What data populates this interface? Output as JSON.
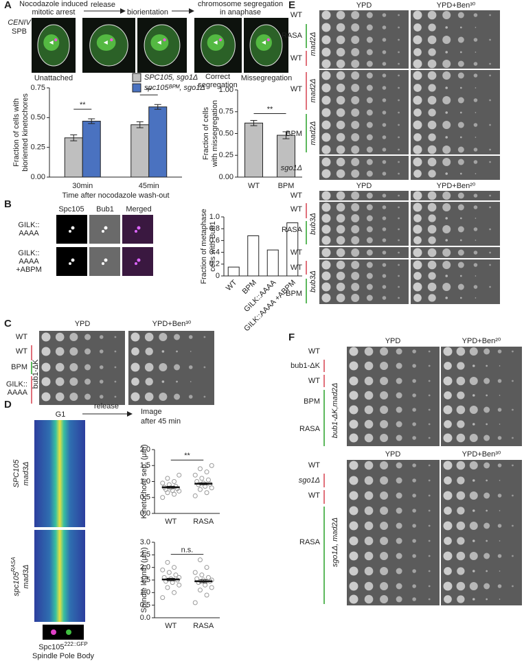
{
  "panels": {
    "A": {
      "label": "A",
      "steps": [
        [
          "Nocodazole induced",
          "mitotic arrest"
        ],
        "release",
        "biorientation",
        [
          "chromosome segregation",
          "in anaphase"
        ]
      ],
      "channels": [
        "CENIV",
        "SPB"
      ],
      "captions": [
        "Unattached",
        [
          "Correct",
          "segregation"
        ],
        "Missegregation"
      ]
    },
    "B": {
      "label": "B",
      "columns": [
        "Spc105",
        "Bub1",
        "Merged"
      ],
      "rows": [
        [
          "GILK::",
          "AAAA"
        ],
        [
          "GILK::",
          "AAAA",
          "+ABPM"
        ]
      ]
    },
    "C": {
      "label": "C",
      "media": [
        "YPD",
        "YPD+Ben³⁰"
      ],
      "rows": [
        "WT",
        "WT",
        "BPM",
        [
          "GILK::",
          "AAAA"
        ]
      ],
      "group": "bub1-ΔK"
    },
    "D": {
      "label": "D",
      "steps": [
        "G1",
        "release",
        [
          "Image",
          "after 45 min"
        ]
      ],
      "genotypes": [
        {
          "name": "SPC105",
          "rest": "mad3Δ"
        },
        {
          "name": "spc105",
          "sup": "RASA",
          "rest": "mad3Δ"
        }
      ],
      "reporter": {
        "name": "Spc105",
        "sup": "222::GFP"
      },
      "marker": "Spindle Pole Body"
    },
    "E": {
      "label": "E",
      "blocks": [
        {
          "media": [
            "YPD",
            "YPD+Ben³⁰"
          ],
          "rows": [
            "WT",
            "RASA",
            "WT",
            "WT",
            "BPM",
            "sgo1Δ"
          ],
          "groups": [
            "mad2Δ",
            "mad2Δ",
            "mad2Δ"
          ]
        },
        {
          "media": [
            "YPD",
            "YPD+Ben²⁰"
          ],
          "rows": [
            "WT",
            "WT",
            "RASA",
            "WT",
            "WT",
            "BPM"
          ],
          "groups": [
            "bub3Δ",
            "bub3Δ"
          ]
        }
      ]
    },
    "F": {
      "label": "F",
      "blocks": [
        {
          "media": [
            "YPD",
            "YPD+Ben²⁰"
          ],
          "rows": [
            "WT",
            "bub1-ΔK",
            "WT",
            "BPM",
            "RASA"
          ],
          "groups": [
            "bub1-ΔK,mad2Δ"
          ]
        },
        {
          "media": [
            "YPD",
            "YPD+Ben³⁰"
          ],
          "rows": [
            "WT",
            "sgo1Δ",
            "WT",
            "RASA"
          ],
          "groups": [
            "sgo1Δ, mad2Δ"
          ]
        }
      ]
    }
  },
  "chart_data": [
    {
      "type": "bar",
      "ylabel": [
        "Fraction of cells with",
        "bioriented kinetochores"
      ],
      "xlabel": "Time after nocodazole wash-out",
      "categories": [
        "30min",
        "45min"
      ],
      "series": [
        {
          "name": "SPC105, sgo1Δ",
          "color": "#bfbfbf",
          "values": [
            0.33,
            0.44
          ],
          "errors": [
            0.025,
            0.025
          ]
        },
        {
          "name": "spc105ᴮᴾᴹ, sgo1Δ",
          "color": "#4a72c0",
          "values": [
            0.47,
            0.59
          ],
          "errors": [
            0.02,
            0.02
          ]
        }
      ],
      "ylim": [
        0,
        0.75
      ],
      "yticks": [
        {
          "value": 0,
          "label": "0.00"
        },
        {
          "value": 0.25,
          "label": "0.25"
        },
        {
          "value": 0.5,
          "label": "0.50"
        },
        {
          "value": 0.75,
          "label": "0.75"
        }
      ],
      "annotations": [
        "**",
        "**"
      ]
    },
    {
      "type": "bar",
      "ylabel": [
        "Fraction of cells",
        "with missegregation"
      ],
      "categories": [
        "WT",
        "BPM"
      ],
      "series": [
        {
          "color": "#bfbfbf",
          "values": [
            0.62,
            0.48
          ],
          "errors": [
            0.03,
            0.04
          ]
        }
      ],
      "ylim": [
        0,
        1
      ],
      "yticks": [
        {
          "value": 0,
          "label": "0.00"
        },
        {
          "value": 0.25,
          "label": "0.25"
        },
        {
          "value": 0.5,
          "label": "0.50"
        },
        {
          "value": 0.75,
          "label": "0.75"
        },
        {
          "value": 1,
          "label": "1.00"
        }
      ],
      "annotations": [
        "**"
      ]
    },
    {
      "type": "bar",
      "ylabel": [
        "Fraction of metaphase",
        "cells with Bub1"
      ],
      "categories": [
        "WT",
        "BPM",
        "GILK::AAAA",
        "GILK::AAAA +ABPM"
      ],
      "series": [
        {
          "color": "#ffffff",
          "values": [
            0.15,
            0.68,
            0.44,
            0.9
          ]
        }
      ],
      "ylim": [
        0,
        1
      ],
      "yticks": [
        0,
        0.2,
        0.4,
        0.6,
        0.8,
        {
          "value": 1,
          "label": "1.0"
        }
      ]
    },
    {
      "type": "dot",
      "ylabel": "Kinetochore sep. (μm)",
      "categories": [
        "WT",
        "RASA"
      ],
      "means": [
        0.82,
        0.93
      ],
      "errors": [
        0.03,
        0.03
      ],
      "points": [
        [
          0.5,
          0.6,
          0.65,
          0.7,
          0.72,
          0.75,
          0.78,
          0.8,
          0.82,
          0.85,
          0.9,
          0.95,
          1.0,
          1.1,
          1.2
        ],
        [
          0.55,
          0.65,
          0.75,
          0.8,
          0.85,
          0.9,
          0.92,
          0.95,
          1.0,
          1.05,
          1.1,
          1.2,
          1.3,
          1.4,
          1.5
        ]
      ],
      "ylim": [
        0,
        2
      ],
      "yticks": [
        {
          "value": 0,
          "label": "0.0"
        },
        {
          "value": 0.5,
          "label": "0.5"
        },
        {
          "value": 1,
          "label": "1.0"
        },
        {
          "value": 1.5,
          "label": "1.5"
        },
        {
          "value": 2,
          "label": "2.0"
        }
      ],
      "annotations": [
        "**"
      ]
    },
    {
      "type": "dot",
      "ylabel": "Spindle legnth (μm)",
      "categories": [
        "WT",
        "RASA"
      ],
      "means": [
        1.52,
        1.45
      ],
      "errors": [
        0.05,
        0.06
      ],
      "points": [
        [
          0.8,
          1.0,
          1.2,
          1.3,
          1.4,
          1.45,
          1.5,
          1.55,
          1.6,
          1.7,
          1.8,
          1.9,
          2.0,
          2.2,
          1.6
        ],
        [
          0.6,
          0.9,
          1.1,
          1.2,
          1.3,
          1.4,
          1.45,
          1.5,
          1.55,
          1.6,
          1.7,
          1.8,
          2.0,
          2.3,
          1.5
        ]
      ],
      "ylim": [
        0,
        3
      ],
      "yticks": [
        {
          "value": 0,
          "label": "0.0"
        },
        {
          "value": 0.5,
          "label": "0.5"
        },
        {
          "value": 1,
          "label": "1.0"
        },
        {
          "value": 1.5,
          "label": "1.5"
        },
        {
          "value": 2,
          "label": "2.0"
        },
        {
          "value": 2.5,
          "label": "2.5"
        },
        {
          "value": 3,
          "label": "3.0"
        }
      ],
      "annotations": [
        "n.s."
      ]
    }
  ]
}
